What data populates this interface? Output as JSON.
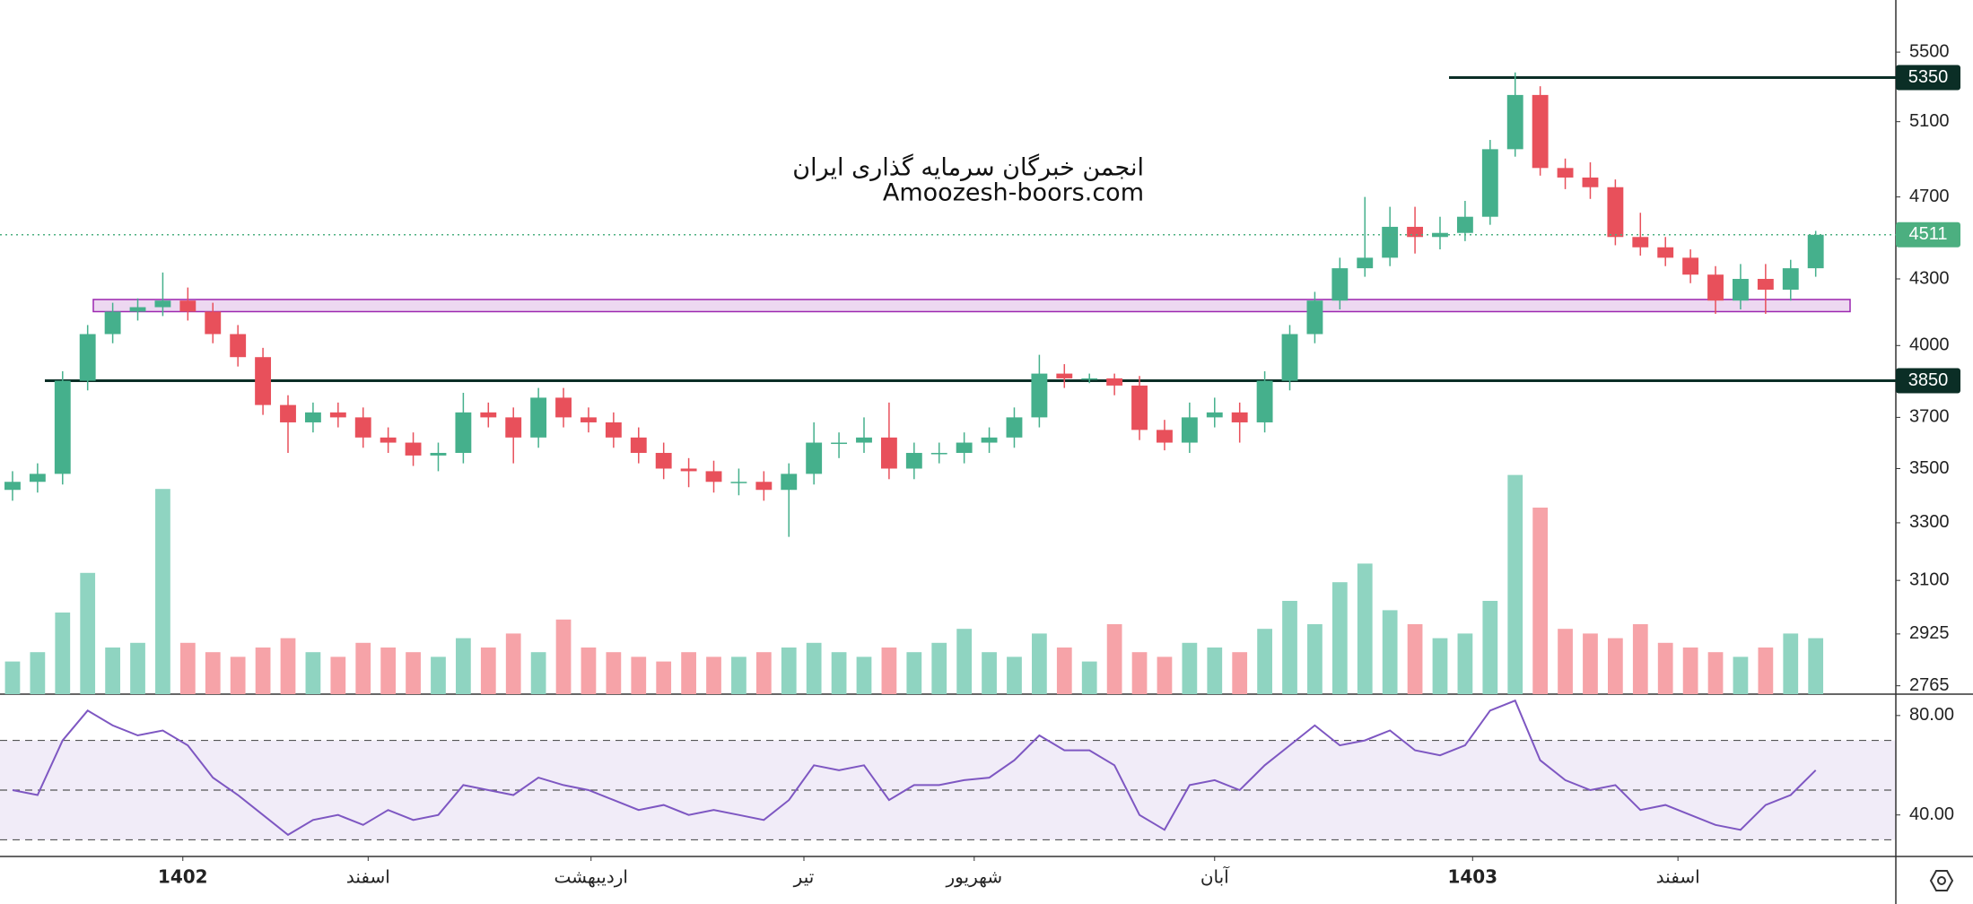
{
  "chart_data": {
    "type": "candlestick",
    "log_scale": true,
    "ylim": [
      2740,
      5820
    ],
    "yticks": [
      2765,
      2925,
      3100,
      3300,
      3500,
      3700,
      4000,
      4300,
      4700,
      5100,
      5500
    ],
    "xlim": [
      -0.5,
      75.2
    ],
    "xticks": [
      {
        "value": 6.8,
        "label": "1402"
      },
      {
        "value": 14.2,
        "label": "اسفند"
      },
      {
        "value": 23.1,
        "label": "اردیبهشت"
      },
      {
        "value": 31.6,
        "label": "تیر"
      },
      {
        "value": 38.4,
        "label": "شهریور"
      },
      {
        "value": 48.0,
        "label": "آبان"
      },
      {
        "value": 58.3,
        "label": "1403"
      },
      {
        "value": 66.5,
        "label": "اسفند"
      }
    ],
    "categories": [
      null,
      null,
      null,
      null,
      null,
      null,
      null,
      null,
      null,
      null,
      null,
      null,
      null,
      null,
      null,
      null,
      null,
      null,
      null,
      null,
      null,
      null,
      null,
      null,
      null,
      null,
      null,
      null,
      null,
      null,
      null,
      null,
      null,
      null,
      null,
      null,
      null,
      null,
      null,
      null,
      null,
      null,
      null,
      null,
      null,
      null,
      null,
      null,
      null,
      null,
      null,
      null,
      null,
      null,
      null,
      null,
      null,
      null,
      null,
      null,
      null,
      null,
      null,
      null,
      null,
      null,
      null,
      null,
      null,
      null,
      null,
      null,
      null
    ],
    "up_color": "#45b08c",
    "down_color": "#e8505b",
    "open": [
      3420,
      3450,
      3480,
      3850,
      4050,
      4150,
      4170,
      4200,
      4150,
      4050,
      3950,
      3750,
      3680,
      3720,
      3700,
      3620,
      3600,
      3550,
      3560,
      3720,
      3700,
      3620,
      3780,
      3700,
      3680,
      3620,
      3560,
      3500,
      3490,
      3450,
      3450,
      3420,
      3480,
      3600,
      3600,
      3620,
      3500,
      3560,
      3560,
      3600,
      3620,
      3700,
      3880,
      3860,
      3860,
      3830,
      3650,
      3600,
      3700,
      3720,
      3680,
      3850,
      4050,
      4200,
      4350,
      4400,
      4550,
      4500,
      4520,
      4600,
      4950,
      5250,
      4850,
      4800,
      4750,
      4500,
      4450,
      4400,
      4320,
      4200,
      4300,
      4250,
      4350
    ],
    "high": [
      3490,
      3520,
      3890,
      4090,
      4190,
      4210,
      4330,
      4260,
      4190,
      4090,
      3990,
      3790,
      3760,
      3760,
      3740,
      3660,
      3640,
      3600,
      3800,
      3760,
      3740,
      3820,
      3820,
      3740,
      3720,
      3660,
      3600,
      3540,
      3530,
      3500,
      3490,
      3520,
      3680,
      3640,
      3700,
      3760,
      3600,
      3600,
      3640,
      3660,
      3740,
      3960,
      3920,
      3880,
      3880,
      3870,
      3690,
      3760,
      3780,
      3760,
      3890,
      4090,
      4240,
      4400,
      4700,
      4650,
      4650,
      4600,
      4680,
      5000,
      5380,
      5300,
      4900,
      4880,
      4790,
      4620,
      4500,
      4440,
      4360,
      4370,
      4370,
      4390,
      4530
    ],
    "low": [
      3380,
      3410,
      3440,
      3810,
      4010,
      4110,
      4130,
      4110,
      4010,
      3910,
      3710,
      3560,
      3640,
      3660,
      3580,
      3560,
      3510,
      3490,
      3520,
      3660,
      3520,
      3580,
      3660,
      3640,
      3580,
      3520,
      3460,
      3430,
      3410,
      3400,
      3380,
      3250,
      3440,
      3540,
      3560,
      3460,
      3460,
      3520,
      3520,
      3560,
      3580,
      3660,
      3820,
      3840,
      3790,
      3610,
      3570,
      3560,
      3660,
      3600,
      3640,
      3810,
      4010,
      4160,
      4310,
      4360,
      4420,
      4440,
      4480,
      4560,
      4910,
      4810,
      4740,
      4690,
      4460,
      4410,
      4360,
      4280,
      4140,
      4160,
      4140,
      4200,
      4310
    ],
    "close": [
      3450,
      3480,
      3850,
      4050,
      4150,
      4170,
      4200,
      4150,
      4050,
      3950,
      3750,
      3680,
      3720,
      3700,
      3620,
      3600,
      3550,
      3560,
      3720,
      3700,
      3620,
      3780,
      3700,
      3680,
      3620,
      3560,
      3500,
      3490,
      3450,
      3450,
      3420,
      3480,
      3600,
      3600,
      3620,
      3500,
      3560,
      3560,
      3600,
      3620,
      3700,
      3880,
      3860,
      3860,
      3830,
      3650,
      3600,
      3700,
      3720,
      3680,
      3850,
      4050,
      4200,
      4350,
      4400,
      4550,
      4500,
      4520,
      4600,
      4950,
      5250,
      4850,
      4800,
      4750,
      4500,
      4450,
      4400,
      4320,
      4200,
      4300,
      4250,
      4350,
      4511
    ],
    "last_color": "#4caf80",
    "volume": {
      "up_color": "#8fd4c1",
      "down_color": "#f6a3a8",
      "ylim": [
        0,
        100
      ],
      "values": [
        14,
        18,
        35,
        52,
        20,
        22,
        88,
        22,
        18,
        16,
        20,
        24,
        18,
        16,
        22,
        20,
        18,
        16,
        24,
        20,
        26,
        18,
        32,
        20,
        18,
        16,
        14,
        18,
        16,
        16,
        18,
        20,
        22,
        18,
        16,
        20,
        18,
        22,
        28,
        18,
        16,
        26,
        20,
        14,
        30,
        18,
        16,
        22,
        20,
        18,
        28,
        40,
        30,
        48,
        56,
        36,
        30,
        24,
        26,
        40,
        94,
        80,
        28,
        26,
        24,
        30,
        22,
        20,
        18,
        16,
        20,
        26,
        24
      ]
    },
    "hlines": [
      5350,
      3850
    ],
    "hline_color": "#0b2e26",
    "zone": [
      4150,
      4205
    ],
    "annotations": [
      "انجمن خبرگان سرمایه گذاری ایران",
      "Amoozesh-boors.com"
    ],
    "rsi": {
      "color": "#7e57c2",
      "ylim": [
        23.3,
        88.6
      ],
      "yticks": [
        {
          "value": 80,
          "label": "80.00"
        },
        {
          "value": 40,
          "label": "40.00"
        }
      ],
      "levels": [
        30,
        50,
        70
      ],
      "values": [
        50,
        48,
        70,
        82,
        76,
        72,
        74,
        68,
        55,
        48,
        40,
        32,
        38,
        40,
        36,
        42,
        38,
        40,
        52,
        50,
        48,
        55,
        52,
        50,
        46,
        42,
        44,
        40,
        42,
        40,
        38,
        46,
        60,
        58,
        60,
        46,
        52,
        52,
        54,
        55,
        62,
        72,
        66,
        66,
        60,
        40,
        34,
        52,
        54,
        50,
        60,
        68,
        76,
        68,
        70,
        74,
        66,
        64,
        68,
        82,
        86,
        62,
        54,
        50,
        52,
        42,
        44,
        40,
        36,
        34,
        44,
        48,
        58
      ]
    }
  }
}
